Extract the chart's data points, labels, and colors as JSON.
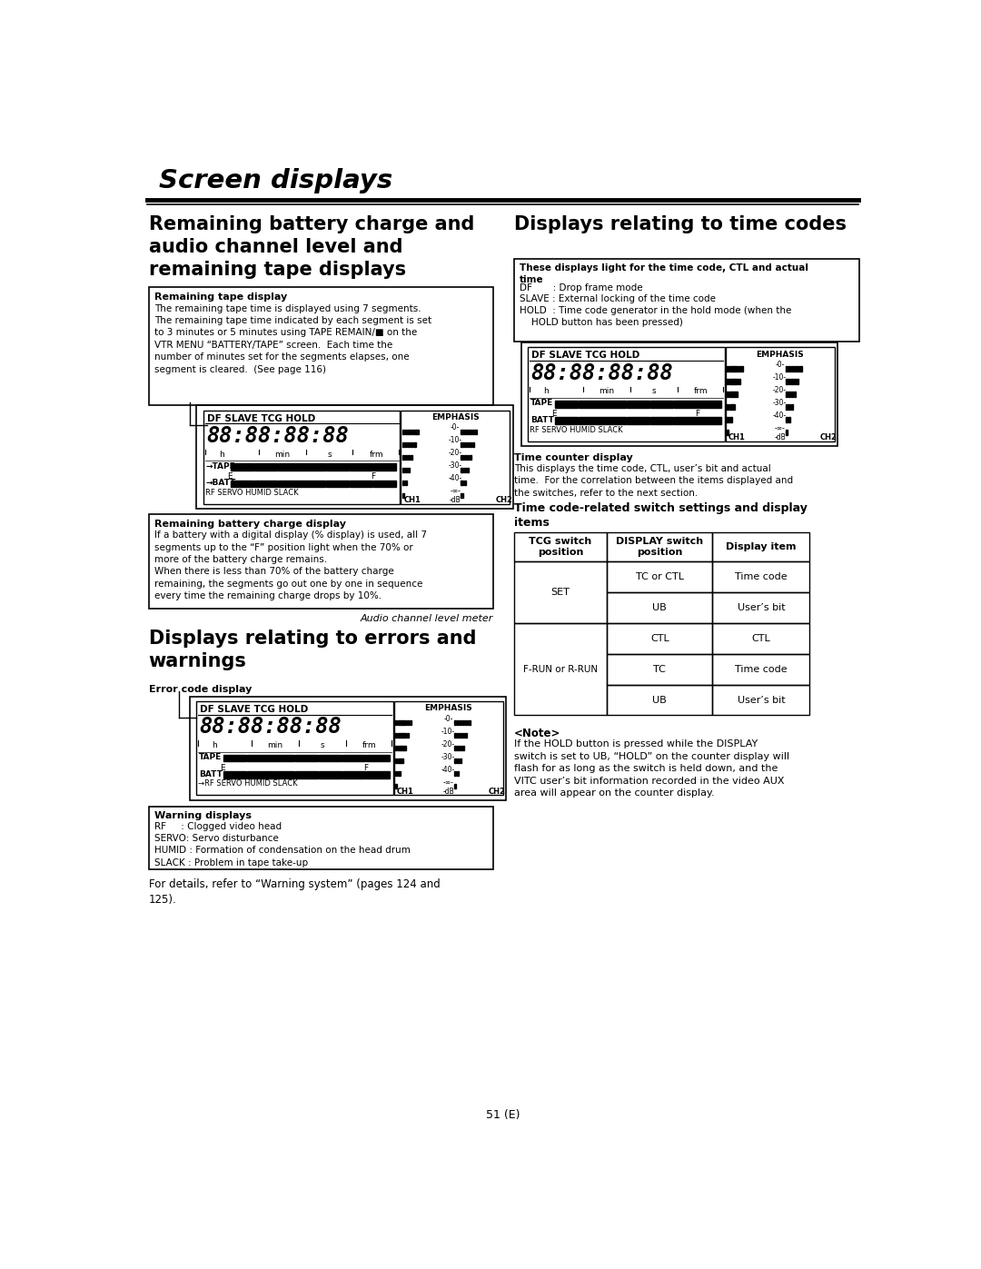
{
  "title": "Screen displays",
  "page_number": "51 (E)",
  "bg_color": "#ffffff",
  "text_color": "#000000",
  "left_col_heading": "Remaining battery charge and\naudio channel level and\nremaining tape displays",
  "right_col_heading": "Displays relating to time codes",
  "errors_heading": "Displays relating to errors and\nwarnings",
  "tape_display_box_title": "Remaining tape display",
  "tape_display_box_text": "The remaining tape time is displayed using 7 segments.\nThe remaining tape time indicated by each segment is set\nto 3 minutes or 5 minutes using TAPE REMAIN/■ on the\nVTR MENU “BATTERY/TAPE” screen.  Each time the\nnumber of minutes set for the segments elapses, one\nsegment is cleared.  (See page 116)",
  "battery_charge_box_title": "Remaining battery charge display",
  "battery_charge_box_text": "If a battery with a digital display (% display) is used, all 7\nsegments up to the “F” position light when the 70% or\nmore of the battery charge remains.\nWhen there is less than 70% of the battery charge\nremaining, the segments go out one by one in sequence\nevery time the remaining charge drops by 10%.",
  "audio_level_label": "Audio channel level meter",
  "error_code_box_title": "Error code display",
  "warning_box_title": "Warning displays",
  "warning_box_text": "RF     : Clogged video head\nSERVO: Servo disturbance\nHUMID : Formation of condensation on the head drum\nSLACK : Problem in tape take-up",
  "for_details_text": "For details, refer to “Warning system” (pages 124 and\n125).",
  "time_display_box_text": "These displays light for the time code, CTL and actual\ntime\nDF       : Drop frame mode\nSLAVE : External locking of the time code\nHOLD  : Time code generator in the hold mode (when the\n    HOLD button has been pressed)",
  "time_counter_title": "Time counter display",
  "time_counter_text": "This displays the time code, CTL, user’s bit and actual\ntime.  For the correlation between the items displayed and\nthe switches, refer to the next section.",
  "switch_settings_title": "Time code-related switch settings and display\nitems",
  "table_headers": [
    "TCG switch\nposition",
    "DISPLAY switch\nposition",
    "Display item"
  ],
  "table_rows": [
    [
      "SET",
      "TC or CTL",
      "Time code"
    ],
    [
      "",
      "UB",
      "User’s bit"
    ],
    [
      "F-RUN or R-RUN",
      "CTL",
      "CTL"
    ],
    [
      "",
      "TC",
      "Time code"
    ],
    [
      "",
      "UB",
      "User’s bit"
    ]
  ],
  "note_title": "<Note>",
  "note_text": "If the HOLD button is pressed while the DISPLAY\nswitch is set to UB, “HOLD” on the counter display will\nflash for as long as the switch is held down, and the\nVITC user’s bit information recorded in the video AUX\narea will appear on the counter display."
}
